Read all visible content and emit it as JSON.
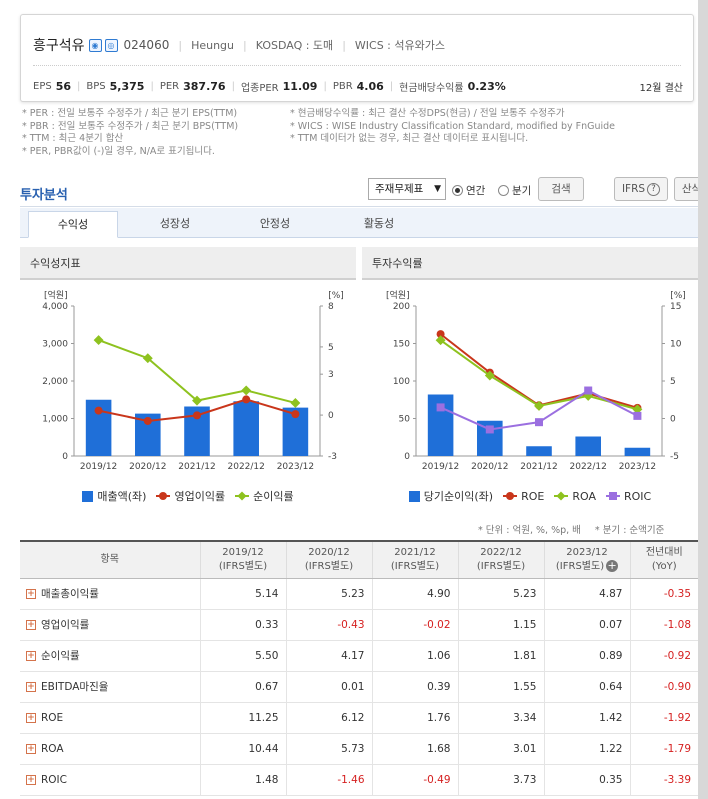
{
  "company": {
    "name": "흥구석유",
    "code": "024060",
    "eng_name": "Heungu",
    "market": "KOSDAQ : 도매",
    "wics": "WICS : 석유와가스",
    "icons": [
      "stock-icon-1",
      "stock-icon-2"
    ]
  },
  "metrics": [
    {
      "label": "EPS",
      "value": "56"
    },
    {
      "label": "BPS",
      "value": "5,375"
    },
    {
      "label": "PER",
      "value": "387.76"
    },
    {
      "label": "업종PER",
      "value": "11.09"
    },
    {
      "label": "PBR",
      "value": "4.06"
    },
    {
      "label": "현금배당수익률",
      "value": "0.23%"
    }
  ],
  "settlement": "12월 결산",
  "notes_left": [
    "* PER : 전일 보통주 수정주가 / 최근 분기 EPS(TTM)",
    "* PBR : 전일 보통주 수정주가 / 최근 분기 BPS(TTM)",
    "* TTM : 최근 4분기 합산",
    "* PER, PBR값이 (-)일 경우, N/A로 표기됩니다."
  ],
  "notes_right": [
    "* 현금배당수익률 : 최근 결산 수정DPS(현금) / 전일 보통주 수정주가",
    "* WICS : WISE Industry Classification Standard, modified by FnGuide",
    "* TTM 데이터가 없는 경우, 최근 결산 데이터로 표시됩니다."
  ],
  "analysis": {
    "title": "투자분석",
    "select_value": "주재무제표",
    "radio_annual": "연간",
    "radio_quarter": "분기",
    "search_button": "검색",
    "ifrs_button": "IFRS",
    "formula_button": "산식",
    "tabs": [
      "수익성",
      "성장성",
      "안정성",
      "활동성"
    ]
  },
  "panel_left_title": "수익성지표",
  "panel_right_title": "투자수익률",
  "chart_data": [
    {
      "type": "bar",
      "title": "수익성지표",
      "categories": [
        "2019/12",
        "2020/12",
        "2021/12",
        "2022/12",
        "2023/12"
      ],
      "ylabel_left": "[억원]",
      "ylabel_right": "[%]",
      "ylim_left": [
        0,
        4000
      ],
      "ylim_right": [
        -3,
        8
      ],
      "yticks_left": [
        "0",
        "1,000",
        "2,000",
        "3,000",
        "4,000"
      ],
      "yticks_right": [
        "-3",
        "0",
        "3",
        "5",
        "8"
      ],
      "legend_placement": "bottom",
      "grid": false,
      "series": [
        {
          "name": "매출액(좌)",
          "kind": "bar",
          "axis": "left",
          "color": "#1f6fd8",
          "values": [
            1500,
            1130,
            1320,
            1460,
            1290
          ]
        },
        {
          "name": "영업이익률",
          "kind": "line",
          "axis": "right",
          "color": "#c9361b",
          "values": [
            0.33,
            -0.43,
            -0.02,
            1.15,
            0.07
          ]
        },
        {
          "name": "순이익률",
          "kind": "line",
          "axis": "right",
          "color": "#8ec21f",
          "values": [
            5.5,
            4.17,
            1.06,
            1.81,
            0.89
          ]
        }
      ]
    },
    {
      "type": "bar",
      "title": "투자수익률",
      "categories": [
        "2019/12",
        "2020/12",
        "2021/12",
        "2022/12",
        "2023/12"
      ],
      "ylabel_left": "[억원]",
      "ylabel_right": "[%]",
      "ylim_left": [
        0,
        200
      ],
      "ylim_right": [
        -5,
        15
      ],
      "yticks_left": [
        "0",
        "50",
        "100",
        "150",
        "200"
      ],
      "yticks_right": [
        "-5",
        "0",
        "5",
        "10",
        "15"
      ],
      "legend_placement": "bottom",
      "grid": false,
      "series": [
        {
          "name": "당기순이익(좌)",
          "kind": "bar",
          "axis": "left",
          "color": "#1f6fd8",
          "values": [
            82,
            47,
            13,
            26,
            11
          ]
        },
        {
          "name": "ROE",
          "kind": "line",
          "axis": "right",
          "color": "#c9361b",
          "values": [
            11.25,
            6.12,
            1.76,
            3.34,
            1.42
          ]
        },
        {
          "name": "ROA",
          "kind": "line",
          "axis": "right",
          "color": "#8ec21f",
          "values": [
            10.44,
            5.73,
            1.68,
            3.01,
            1.22
          ]
        },
        {
          "name": "ROIC",
          "kind": "line",
          "axis": "right",
          "color": "#9b6fe0",
          "values": [
            1.48,
            -1.46,
            -0.49,
            3.73,
            0.35
          ]
        }
      ]
    }
  ],
  "units_note": "* 단위 : 억원, %, %p, 배",
  "quarter_note": "* 분기 : 순액기준",
  "table": {
    "headers": [
      "항목",
      "2019/12\n(IFRS별도)",
      "2020/12\n(IFRS별도)",
      "2021/12\n(IFRS별도)",
      "2022/12\n(IFRS별도)",
      "2023/12\n(IFRS별도)",
      "전년대비\n(YoY)"
    ],
    "rows": [
      {
        "label": "매출총이익률",
        "values": [
          "5.14",
          "5.23",
          "4.90",
          "5.23",
          "4.87",
          "-0.35"
        ]
      },
      {
        "label": "영업이익률",
        "values": [
          "0.33",
          "-0.43",
          "-0.02",
          "1.15",
          "0.07",
          "-1.08"
        ]
      },
      {
        "label": "순이익률",
        "values": [
          "5.50",
          "4.17",
          "1.06",
          "1.81",
          "0.89",
          "-0.92"
        ]
      },
      {
        "label": "EBITDA마진율",
        "values": [
          "0.67",
          "0.01",
          "0.39",
          "1.55",
          "0.64",
          "-0.90"
        ]
      },
      {
        "label": "ROE",
        "values": [
          "11.25",
          "6.12",
          "1.76",
          "3.34",
          "1.42",
          "-1.92"
        ]
      },
      {
        "label": "ROA",
        "values": [
          "10.44",
          "5.73",
          "1.68",
          "3.01",
          "1.22",
          "-1.79"
        ]
      },
      {
        "label": "ROIC",
        "values": [
          "1.48",
          "-1.46",
          "-0.49",
          "3.73",
          "0.35",
          "-3.39"
        ]
      }
    ]
  }
}
